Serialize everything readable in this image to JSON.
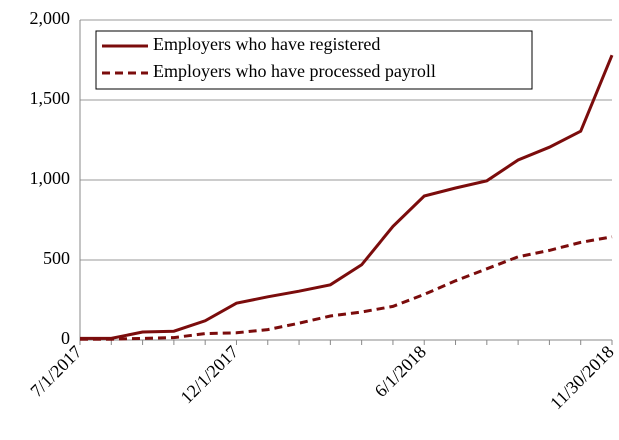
{
  "chart_data": {
    "type": "line",
    "categories": [
      "7/1/2017",
      null,
      null,
      null,
      null,
      "12/1/2017",
      null,
      null,
      null,
      null,
      null,
      "6/1/2018",
      null,
      null,
      null,
      null,
      null,
      "11/30/2018"
    ],
    "series": [
      {
        "name": "Employers who have registered",
        "color": "#7b0c0c",
        "dash": "solid",
        "values": [
          10,
          10,
          50,
          55,
          120,
          230,
          270,
          305,
          345,
          470,
          710,
          900,
          950,
          995,
          1125,
          1205,
          1305,
          1780
        ]
      },
      {
        "name": "Employers who have processed payroll",
        "color": "#7b0c0c",
        "dash": "dashed",
        "values": [
          5,
          5,
          10,
          15,
          40,
          45,
          65,
          105,
          150,
          175,
          210,
          285,
          370,
          445,
          520,
          560,
          610,
          645
        ]
      }
    ],
    "ylim": [
      0,
      2000
    ],
    "yticks": [
      0,
      {
        "value": 500,
        "label": "500"
      },
      {
        "value": 1000,
        "label": "1,000"
      },
      {
        "value": 1500,
        "label": "1,500"
      },
      {
        "value": 2000,
        "label": "2,000"
      }
    ],
    "grid": true,
    "legend": "upper left"
  }
}
